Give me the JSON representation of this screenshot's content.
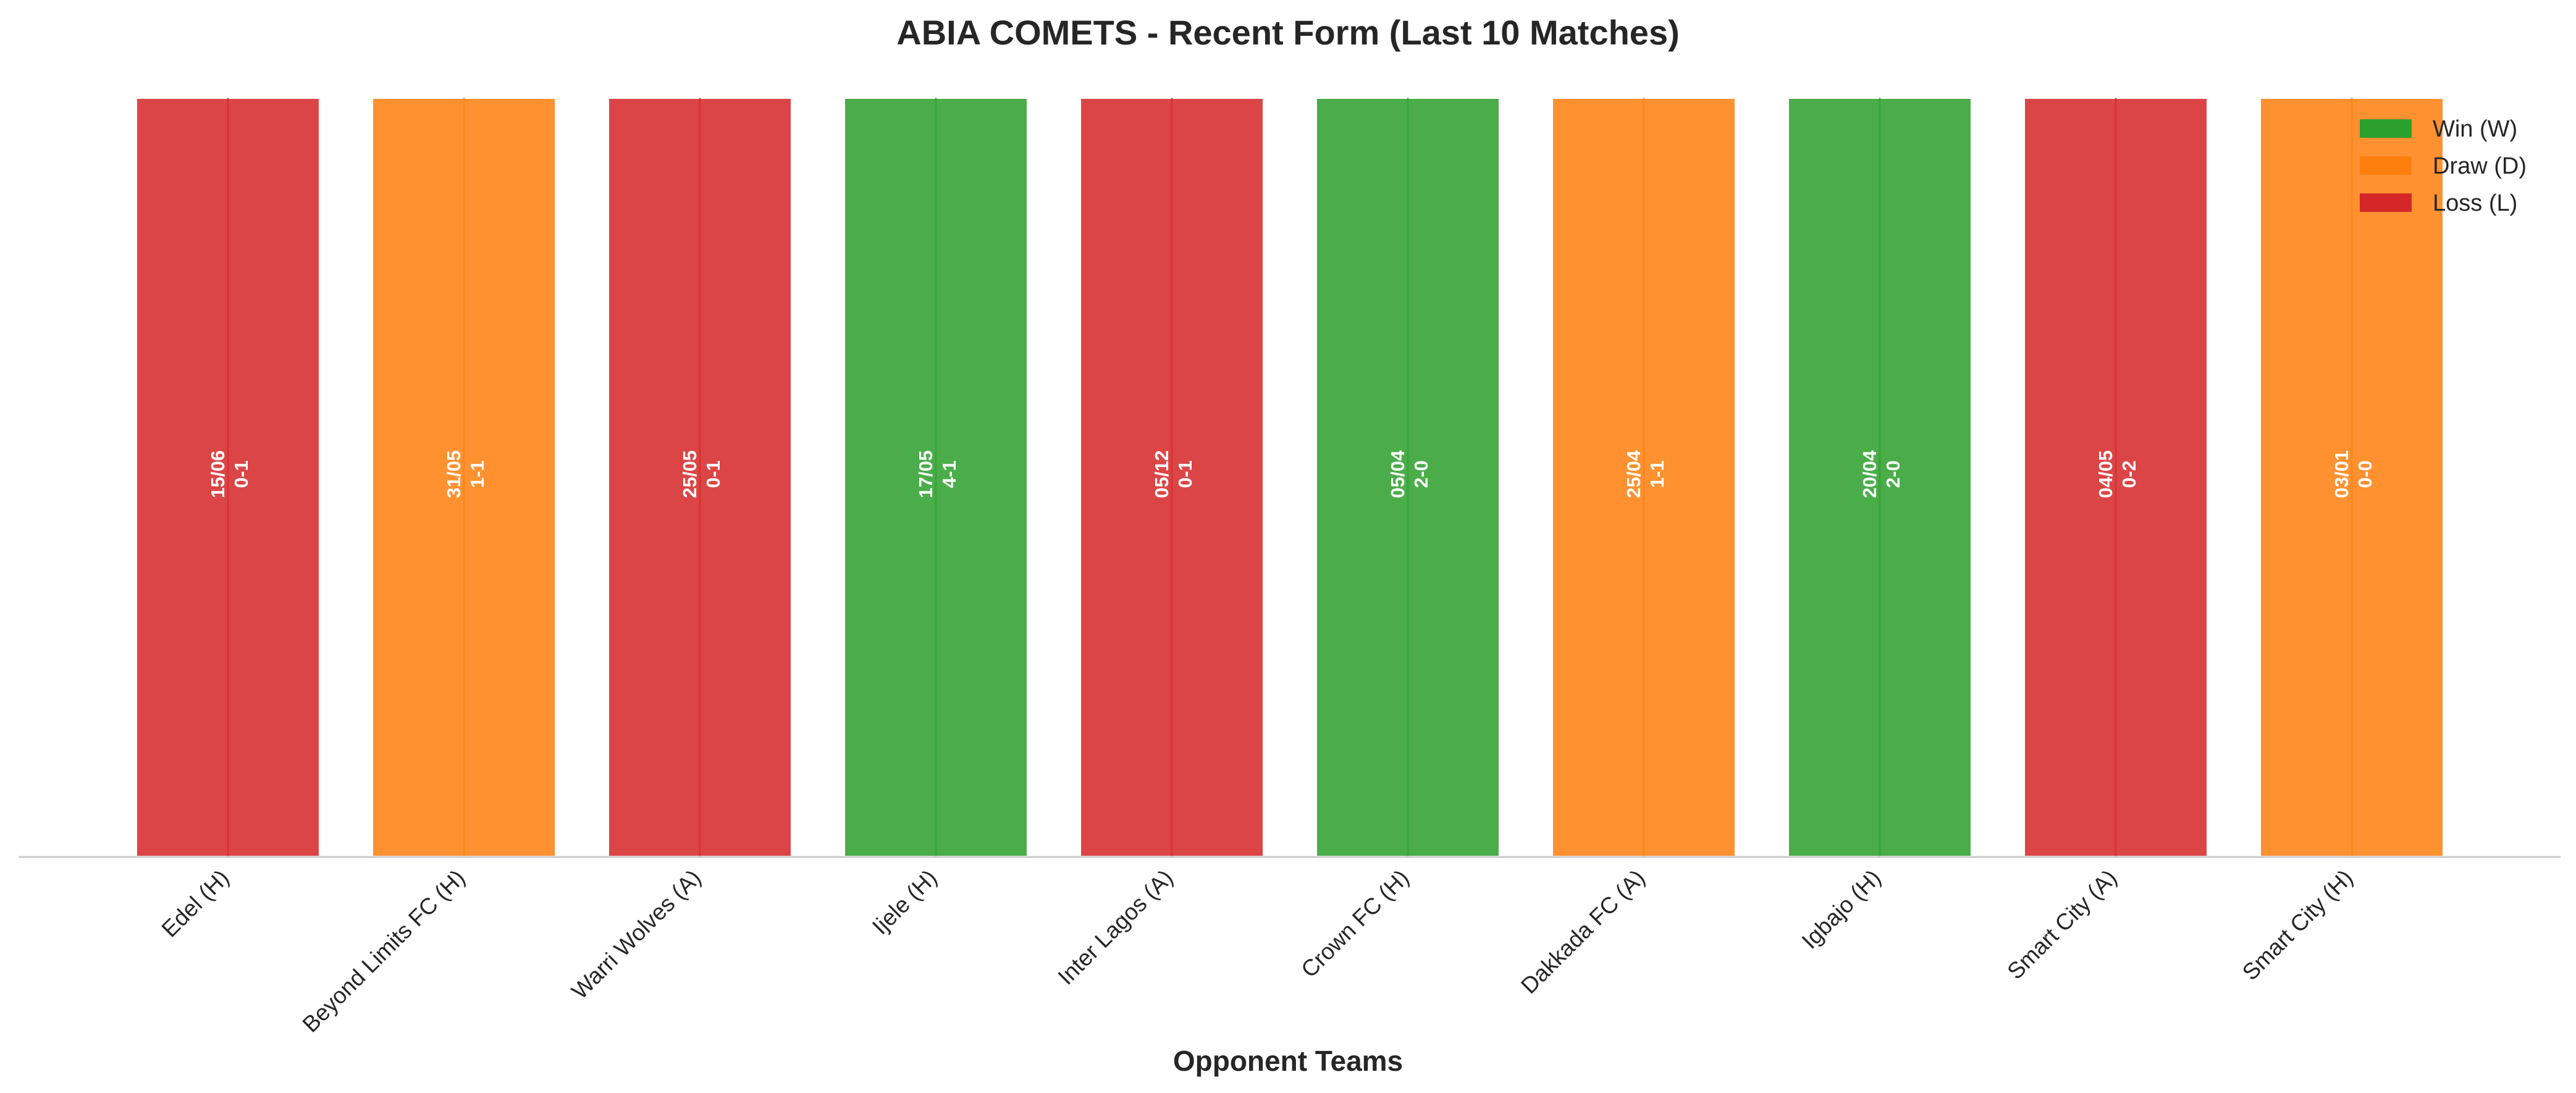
{
  "chart_data": {
    "type": "bar",
    "title": "ABIA COMETS - Recent Form (Last 10 Matches)",
    "xlabel": "Opponent Teams",
    "ylabel": "",
    "ylim": [
      0,
      1
    ],
    "grid": false,
    "legend_position": "top-right",
    "categories": [
      "Edel (H)",
      "Beyond Limits FC (H)",
      "Warri Wolves (A)",
      "Ijele (H)",
      "Inter Lagos (A)",
      "Crown FC (H)",
      "Dakkada FC (A)",
      "Igbajo (H)",
      "Smart City (A)",
      "Smart City (H)"
    ],
    "values": [
      1,
      1,
      1,
      1,
      1,
      1,
      1,
      1,
      1,
      1
    ],
    "results": [
      "L",
      "D",
      "L",
      "W",
      "L",
      "W",
      "D",
      "W",
      "L",
      "D"
    ],
    "dates": [
      "15/06",
      "31/05",
      "25/05",
      "17/05",
      "05/12",
      "05/04",
      "25/04",
      "20/04",
      "04/05",
      "03/01"
    ],
    "scores": [
      "0-1",
      "1-1",
      "0-1",
      "4-1",
      "0-1",
      "2-0",
      "1-1",
      "2-0",
      "0-2",
      "0-0"
    ],
    "legend": [
      {
        "key": "W",
        "label": "Win (W)",
        "color": "#2ca02c"
      },
      {
        "key": "D",
        "label": "Draw (D)",
        "color": "#ff7f0e"
      },
      {
        "key": "L",
        "label": "Loss (L)",
        "color": "#d62728"
      }
    ]
  }
}
